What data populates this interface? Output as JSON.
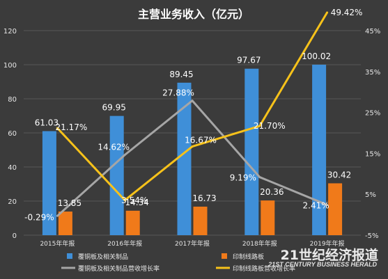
{
  "chart_data": {
    "type": "bar",
    "title": "主营业务收入（亿元）",
    "categories": [
      "2015年年报",
      "2016年年报",
      "2017年年报",
      "2018年年报",
      "2019年年报"
    ],
    "left_axis": {
      "min": 0,
      "max": 120,
      "step": 20,
      "ticks": [
        "0",
        "20",
        "40",
        "60",
        "80",
        "100",
        "120"
      ]
    },
    "right_axis": {
      "min": -5,
      "max": 45,
      "step": 10,
      "ticks": [
        "-5%",
        "5%",
        "15%",
        "25%",
        "35%",
        "45%"
      ]
    },
    "bar_series": [
      {
        "name": "覆铜板及相关制品",
        "color": "#3f8fd8",
        "values": [
          61.03,
          69.95,
          89.45,
          97.67,
          100.02
        ],
        "labels": [
          "61.03",
          "69.95",
          "89.45",
          "97.67",
          "100.02"
        ]
      },
      {
        "name": "印制线路板",
        "color": "#f07a1a",
        "values": [
          13.85,
          14.34,
          16.73,
          20.36,
          30.42
        ],
        "labels": [
          "13.85",
          "14.34",
          "16.73",
          "20.36",
          "30.42"
        ]
      }
    ],
    "line_series": [
      {
        "name": "覆铜板及相关制品营收增长率",
        "color": "#a6a6a6",
        "values": [
          -0.29,
          14.62,
          27.88,
          9.19,
          2.41
        ],
        "labels": [
          "-0.29%",
          "14.62%",
          "27.88%",
          "9.19%",
          "2.41%"
        ]
      },
      {
        "name": "印制线路板营收增长率",
        "color": "#f7c21a",
        "values": [
          21.17,
          3.54,
          16.67,
          21.7,
          49.42
        ],
        "labels": [
          "21.17%",
          "3.54%",
          "16.67%",
          "21.70%",
          "49.42%"
        ]
      }
    ],
    "grid": true,
    "legend_position": "bottom"
  },
  "watermark": {
    "cn": "21世纪经济报道",
    "en": "21ST CENTURY BUSINESS HERALD"
  }
}
